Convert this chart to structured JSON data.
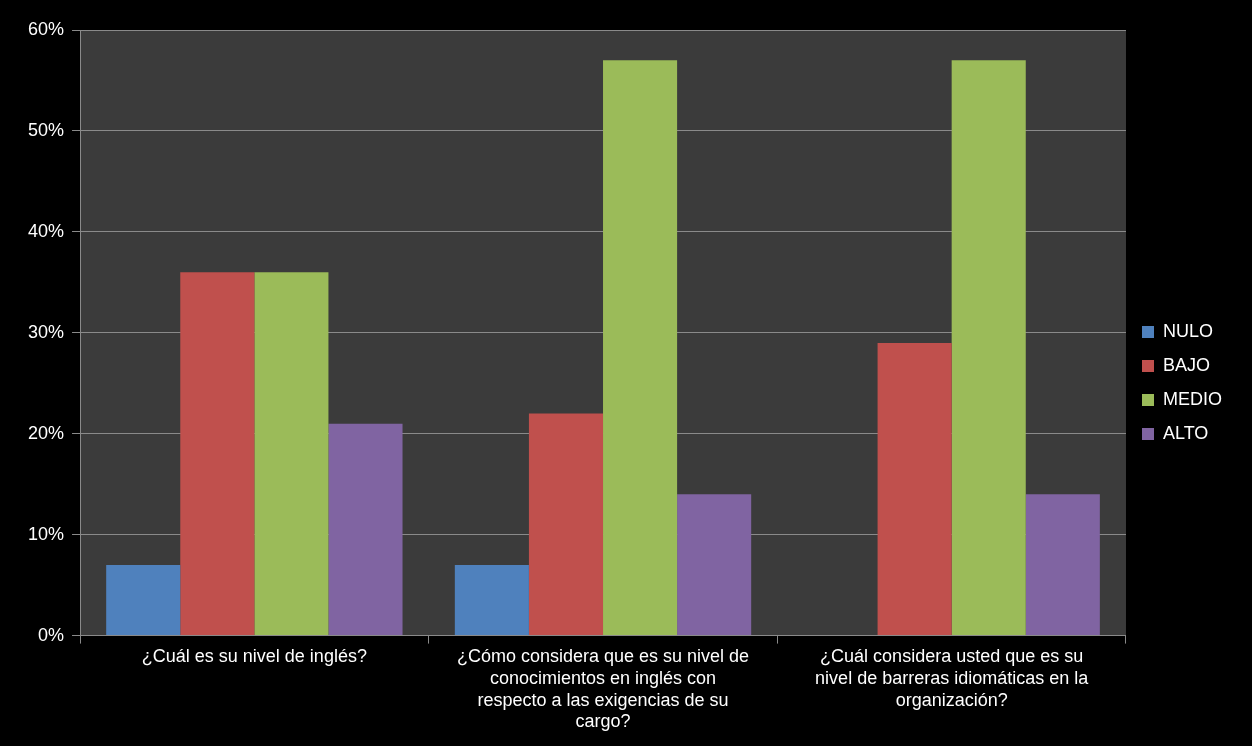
{
  "chart_data": {
    "type": "bar",
    "categories": [
      "¿Cuál es su nivel de inglés?",
      "¿Cómo considera que es su nivel de conocimientos en inglés con respecto a las exigencias de su cargo?",
      "¿Cuál considera usted que es su nivel de barreras idiomáticas en la organización?"
    ],
    "series": [
      {
        "name": "NULO",
        "color": "#4f81bd",
        "values": [
          7,
          7,
          0
        ]
      },
      {
        "name": "BAJO",
        "color": "#c0504d",
        "values": [
          36,
          22,
          29
        ]
      },
      {
        "name": "MEDIO",
        "color": "#9bbb59",
        "values": [
          36,
          57,
          57
        ]
      },
      {
        "name": "ALTO",
        "color": "#8064a2",
        "values": [
          21,
          14,
          14
        ]
      }
    ],
    "ylim": [
      0,
      60
    ],
    "yticks": [
      {
        "value": 0,
        "label": "0%"
      },
      {
        "value": 10,
        "label": "10%"
      },
      {
        "value": 20,
        "label": "20%"
      },
      {
        "value": 30,
        "label": "30%"
      },
      {
        "value": 40,
        "label": "40%"
      },
      {
        "value": 50,
        "label": "50%"
      },
      {
        "value": 60,
        "label": "60%"
      }
    ],
    "grid": "y",
    "legend": "right"
  }
}
